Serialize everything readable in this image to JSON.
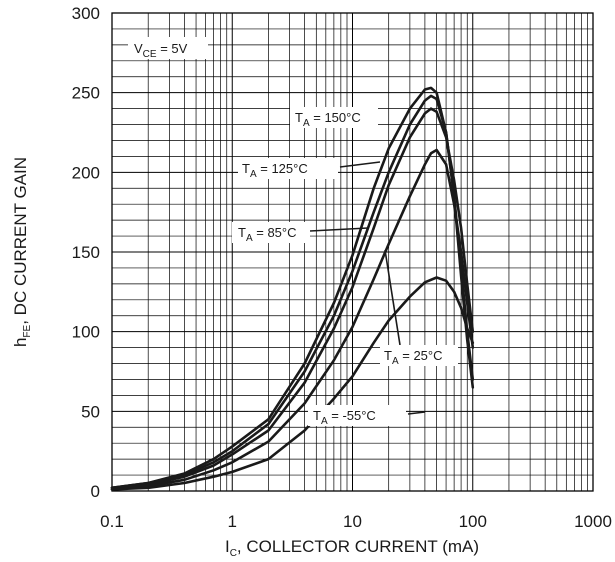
{
  "chart_data": {
    "type": "line",
    "x_scale": "log",
    "xlim": [
      0.1,
      1000
    ],
    "ylim": [
      0,
      300
    ],
    "grid": true,
    "xlabel": {
      "main": "I",
      "sub": "C",
      "rest": ", COLLECTOR CURRENT (mA)"
    },
    "ylabel": {
      "main": "h",
      "sub": "FE",
      "rest": ", DC CURRENT GAIN"
    },
    "x_ticks": [
      {
        "value": 0.1,
        "label": "0.1"
      },
      {
        "value": 1,
        "label": "1"
      },
      {
        "value": 10,
        "label": "10"
      },
      {
        "value": 100,
        "label": "100"
      },
      {
        "value": 1000,
        "label": "1000"
      }
    ],
    "y_ticks": [
      {
        "value": 0,
        "label": "0"
      },
      {
        "value": 50,
        "label": "50"
      },
      {
        "value": 100,
        "label": "100"
      },
      {
        "value": 150,
        "label": "150"
      },
      {
        "value": 200,
        "label": "200"
      },
      {
        "value": 250,
        "label": "250"
      },
      {
        "value": 300,
        "label": "300"
      }
    ],
    "condition": {
      "main": "V",
      "sub": "CE",
      "rest": " = 5V"
    },
    "series": [
      {
        "name": "TA = 150°C",
        "label": {
          "main": "T",
          "sub": "A",
          "rest": " = 150°C"
        },
        "x": [
          0.1,
          0.2,
          0.4,
          0.7,
          1,
          2,
          4,
          7,
          10,
          15,
          20,
          30,
          40,
          45,
          50,
          60,
          70,
          80,
          90,
          100
        ],
        "y": [
          2,
          5,
          11,
          20,
          28,
          45,
          80,
          118,
          148,
          190,
          215,
          240,
          252,
          253,
          250,
          225,
          185,
          135,
          95,
          65
        ]
      },
      {
        "name": "TA = 125°C",
        "label": {
          "main": "T",
          "sub": "A",
          "rest": " = 125°C"
        },
        "x": [
          0.1,
          0.2,
          0.4,
          0.7,
          1,
          2,
          4,
          7,
          10,
          15,
          20,
          30,
          40,
          45,
          50,
          60,
          70,
          80,
          90,
          100
        ],
        "y": [
          2,
          5,
          10,
          18,
          25,
          42,
          75,
          110,
          138,
          175,
          200,
          230,
          245,
          248,
          246,
          225,
          185,
          140,
          100,
          70
        ]
      },
      {
        "name": "TA = 85°C",
        "label": {
          "main": "T",
          "sub": "A",
          "rest": " = 85°C"
        },
        "x": [
          0.1,
          0.2,
          0.4,
          0.7,
          1,
          2,
          4,
          7,
          10,
          15,
          20,
          30,
          40,
          45,
          50,
          60,
          70,
          80,
          90,
          100
        ],
        "y": [
          2,
          4,
          9,
          16,
          23,
          38,
          68,
          102,
          128,
          165,
          192,
          222,
          237,
          240,
          238,
          222,
          195,
          165,
          130,
          100
        ]
      },
      {
        "name": "TA = 25°C",
        "label": {
          "main": "T",
          "sub": "A",
          "rest": " = 25°C"
        },
        "x": [
          0.1,
          0.2,
          0.4,
          0.7,
          1,
          2,
          4,
          7,
          10,
          15,
          20,
          30,
          40,
          45,
          50,
          60,
          70,
          80,
          90,
          100
        ],
        "y": [
          1,
          3,
          7,
          13,
          18,
          31,
          55,
          82,
          103,
          133,
          155,
          185,
          205,
          212,
          214,
          205,
          180,
          150,
          118,
          90
        ]
      },
      {
        "name": "TA = -55°C",
        "label": {
          "main": "T",
          "sub": "A",
          "rest": " = -55°C"
        },
        "x": [
          0.1,
          0.2,
          0.4,
          0.7,
          1,
          2,
          4,
          7,
          10,
          15,
          20,
          30,
          40,
          50,
          60,
          70,
          80,
          90,
          100
        ],
        "y": [
          1,
          2,
          5,
          9,
          12,
          20,
          38,
          58,
          72,
          93,
          107,
          122,
          131,
          134,
          132,
          125,
          115,
          102,
          93
        ]
      }
    ]
  }
}
